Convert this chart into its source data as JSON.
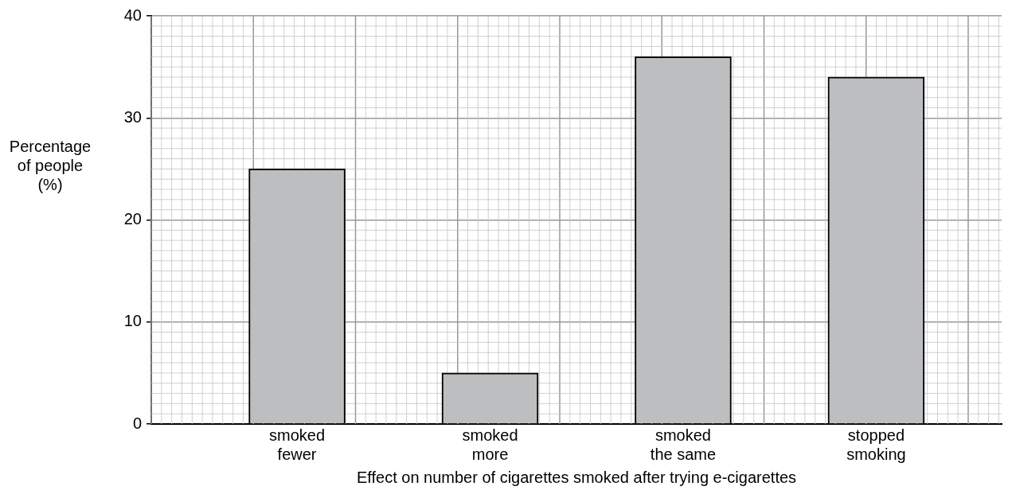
{
  "chart_data": {
    "type": "bar",
    "categories": [
      "smoked fewer",
      "smoked more",
      "smoked the same",
      "stopped smoking"
    ],
    "values": [
      25,
      5,
      36,
      34
    ],
    "color": "#bcbec0",
    "xlabel": "Effect on number of cigarettes smoked after trying e-cigarettes",
    "ylabel": "Percentage of people (%)",
    "ylim": [
      0,
      40
    ],
    "yticks": [
      0,
      10,
      20,
      30,
      40
    ],
    "grid": true
  }
}
